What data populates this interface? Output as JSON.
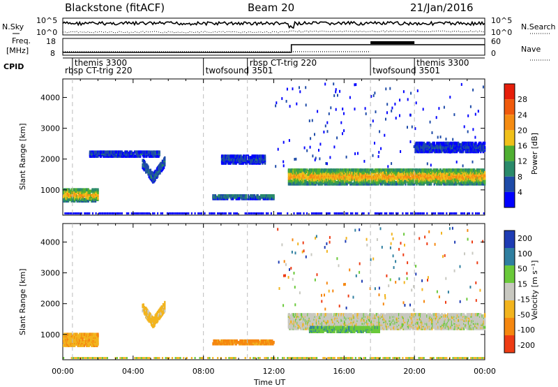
{
  "header": {
    "station": "Blackstone (fitACF)",
    "beam": "Beam 20",
    "date": "21/Jan/2016"
  },
  "top_panels": {
    "nsky": {
      "label": "N.Sky",
      "ticks": [
        "10^5",
        "10^0"
      ],
      "right_label": "N.Search",
      "right_ticks": [
        "10^5",
        "10^0"
      ]
    },
    "freq": {
      "label1": "Freq.",
      "label2": "[MHz]",
      "ticks": [
        "18",
        "8"
      ],
      "right_label": "Nave",
      "right_ticks": [
        "60",
        "0"
      ]
    },
    "cpid": {
      "label": "CPID",
      "modes": [
        {
          "name": "themis 3300",
          "hour": 0.55,
          "row": 0
        },
        {
          "name": "rbsp CT-trig 220",
          "hour": 0.0,
          "row": 1
        },
        {
          "name": "twofsound 3501",
          "hour": 8.0,
          "row": 1
        },
        {
          "name": "rbsp CT-trig 220",
          "hour": 10.5,
          "row": 0
        },
        {
          "name": "twofsound 3501",
          "hour": 17.5,
          "row": 1
        },
        {
          "name": "themis 3300",
          "hour": 20.0,
          "row": 0
        }
      ],
      "mode_change_hours": [
        0.55,
        8.0,
        10.5,
        17.5,
        20.0
      ]
    }
  },
  "axes": {
    "xlabel": "Time UT",
    "ylabel": "Slant Range [km]",
    "x_ticks": [
      "00:00",
      "04:00",
      "08:00",
      "12:00",
      "16:00",
      "20:00",
      "00:00"
    ],
    "y_ticks": [
      "1000",
      "2000",
      "3000",
      "4000"
    ]
  },
  "power_colorbar": {
    "label": "Power [dB]",
    "ticks": [
      "4",
      "8",
      "12",
      "16",
      "20",
      "24",
      "28"
    ],
    "colors": [
      "#0000ff",
      "#1e4ba8",
      "#2a8a6a",
      "#4faf32",
      "#f0c01a",
      "#f58c12",
      "#f05a0c",
      "#e61e0a"
    ]
  },
  "velocity_colorbar": {
    "label": "Velocity [m s⁻¹]",
    "ticks": [
      "200",
      "100",
      "50",
      "15",
      "-15",
      "-50",
      "-100",
      "-200"
    ],
    "colors": [
      "#1e3cb4",
      "#2f7fa0",
      "#6ac93a",
      "#c8c8c0",
      "#f2b41e",
      "#f5870f",
      "#ee3c14"
    ]
  },
  "chart_data": {
    "type": "heatmap",
    "x_range_hours": [
      0,
      24
    ],
    "y_range_km": [
      180,
      4600
    ],
    "power_bands": [
      {
        "start_hour": 0.0,
        "end_hour": 2.0,
        "center_km": 850,
        "width_km": 400,
        "value_db": 22
      },
      {
        "start_hour": 1.5,
        "end_hour": 5.5,
        "center_km": 2200,
        "width_km": 200,
        "value_db": 6
      },
      {
        "start_hour": 4.5,
        "end_hour": 5.8,
        "center_km": 1400,
        "width_km": 300,
        "value_db": 8
      },
      {
        "start_hour": 8.5,
        "end_hour": 12.0,
        "center_km": 800,
        "width_km": 150,
        "value_db": 10
      },
      {
        "start_hour": 9.0,
        "end_hour": 11.5,
        "center_km": 2000,
        "width_km": 250,
        "value_db": 6
      },
      {
        "start_hour": 12.8,
        "end_hour": 24.0,
        "center_km": 1450,
        "width_km": 500,
        "value_db": 22
      },
      {
        "start_hour": 20.0,
        "end_hour": 24.0,
        "center_km": 2400,
        "width_km": 300,
        "value_db": 6
      }
    ],
    "velocity_bands": [
      {
        "start_hour": 0.0,
        "end_hour": 2.0,
        "center_km": 850,
        "width_km": 400,
        "value_ms": -40
      },
      {
        "start_hour": 4.5,
        "end_hour": 5.8,
        "center_km": 1400,
        "width_km": 300,
        "value_ms": -30
      },
      {
        "start_hour": 8.5,
        "end_hour": 12.0,
        "center_km": 780,
        "width_km": 150,
        "value_ms": -60
      },
      {
        "start_hour": 12.8,
        "end_hour": 24.0,
        "center_km": 1450,
        "width_km": 500,
        "value_ms": 0
      },
      {
        "start_hour": 14.0,
        "end_hour": 18.0,
        "center_km": 1200,
        "width_km": 200,
        "value_ms": 40
      }
    ],
    "ground_scatter_km": 230
  }
}
